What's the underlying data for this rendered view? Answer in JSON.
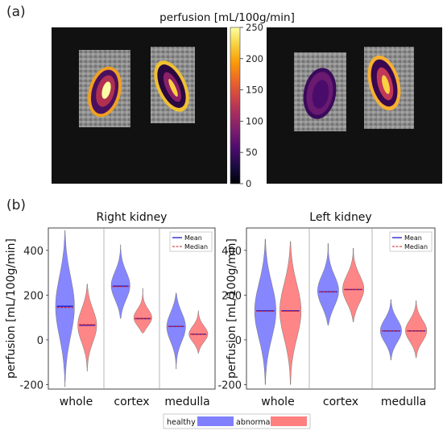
{
  "panel_a_label": "(a)",
  "panel_b_label": "(b)",
  "colorbar": {
    "title": "perfusion [mL/100g/min]",
    "ticks": [
      "250",
      "200",
      "150",
      "100",
      "50",
      "0"
    ],
    "colormap": [
      "#000004",
      "#1b0c41",
      "#4a0c6b",
      "#781c6d",
      "#a52c60",
      "#cf4446",
      "#ed6925",
      "#fb9b06",
      "#f7d13d",
      "#fcffa4"
    ]
  },
  "legend_bottom": {
    "items": [
      {
        "label": "healthy",
        "color": "#8080ff"
      },
      {
        "label": "abnormal",
        "color": "#ff7f7f"
      }
    ]
  },
  "chart_data": [
    {
      "type": "violin",
      "title": "Right kidney",
      "ylabel": "perfusion [mL/100g/min]",
      "categories": [
        "whole",
        "cortex",
        "medulla"
      ],
      "yticks": [
        "-200",
        "0",
        "200",
        "400"
      ],
      "ylim": [
        -220,
        500
      ],
      "legend": {
        "placement": "top-right",
        "items": [
          "Mean",
          "Median"
        ]
      },
      "series": [
        {
          "name": "healthy",
          "color": "#8080ff",
          "groups": [
            {
              "mean": 150,
              "median": 145,
              "min": -210,
              "max": 490
            },
            {
              "mean": 240,
              "median": 238,
              "min": 95,
              "max": 425
            },
            {
              "mean": 60,
              "median": 60,
              "min": -130,
              "max": 210
            }
          ]
        },
        {
          "name": "abnormal",
          "color": "#ff7f7f",
          "groups": [
            {
              "mean": 65,
              "median": 68,
              "min": -140,
              "max": 250
            },
            {
              "mean": 95,
              "median": 95,
              "min": 30,
              "max": 230
            },
            {
              "mean": 25,
              "median": 25,
              "min": -60,
              "max": 130
            }
          ]
        }
      ]
    },
    {
      "type": "violin",
      "title": "Left kidney",
      "ylabel": "perfusion [mL/100g/min]",
      "categories": [
        "whole",
        "cortex",
        "medulla"
      ],
      "yticks": [
        "-200",
        "0",
        "200",
        "400"
      ],
      "ylim": [
        -220,
        500
      ],
      "legend": {
        "placement": "top-right",
        "items": [
          "Mean",
          "Median"
        ]
      },
      "series": [
        {
          "name": "healthy",
          "color": "#8080ff",
          "groups": [
            {
              "mean": 130,
              "median": 128,
              "min": -200,
              "max": 450
            },
            {
              "mean": 215,
              "median": 215,
              "min": 65,
              "max": 430
            },
            {
              "mean": 40,
              "median": 40,
              "min": -90,
              "max": 180
            }
          ]
        },
        {
          "name": "abnormal",
          "color": "#ff7f7f",
          "groups": [
            {
              "mean": 130,
              "median": 128,
              "min": -200,
              "max": 440
            },
            {
              "mean": 225,
              "median": 225,
              "min": 80,
              "max": 410
            },
            {
              "mean": 40,
              "median": 40,
              "min": -80,
              "max": 175
            }
          ]
        }
      ]
    }
  ]
}
